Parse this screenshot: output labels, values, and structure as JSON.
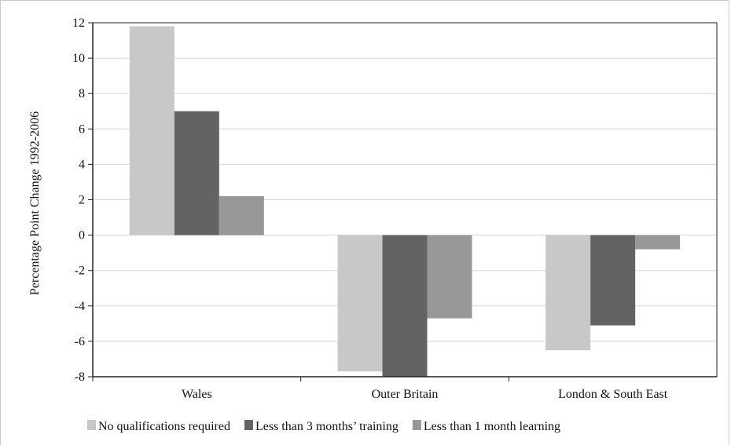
{
  "chart_data": {
    "type": "bar",
    "categories": [
      "Wales",
      "Outer Britain",
      "London & South East"
    ],
    "series": [
      {
        "name": "No qualifications required",
        "color": "#c8c8c8",
        "values": [
          11.8,
          -7.7,
          -6.5
        ]
      },
      {
        "name": "Less than 3 months’ training",
        "color": "#636366",
        "values": [
          7.0,
          -8.0,
          -5.1
        ]
      },
      {
        "name": "Less than 1 month learning",
        "color": "#98989b",
        "values": [
          2.2,
          -4.7,
          -0.8
        ]
      }
    ],
    "ylabel": "Percentage Point Change 1992-2006",
    "xlabel": "",
    "ylim": [
      -8,
      12
    ],
    "yticks": [
      -8,
      -6,
      -4,
      -2,
      0,
      2,
      4,
      6,
      8,
      10,
      12
    ],
    "ytick_labels": [
      "-8",
      "-6",
      "-4",
      "-2",
      "0",
      "2",
      "4",
      "6",
      "8",
      "10",
      "12"
    ],
    "grid": true,
    "legend_position": "bottom"
  }
}
